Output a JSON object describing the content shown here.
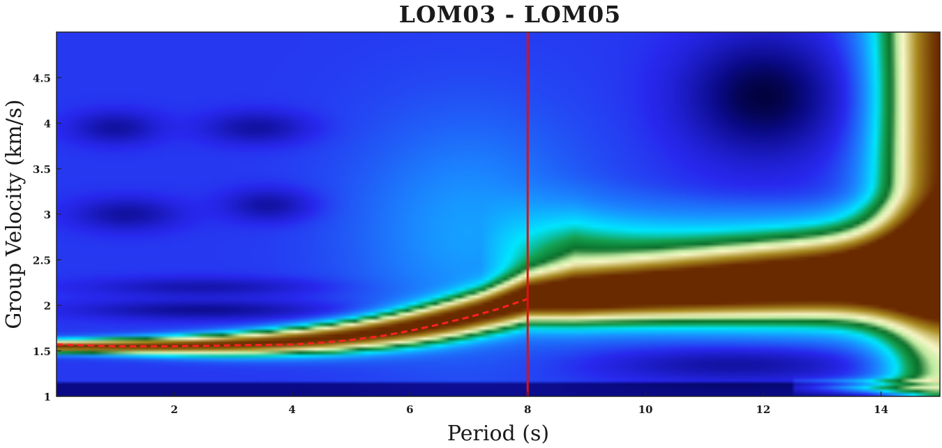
{
  "chart_data": {
    "type": "heatmap",
    "title": "LOM03 - LOM05",
    "xlabel": "Period (s)",
    "ylabel": "Group Velocity (km/s)",
    "xlim": [
      0,
      15
    ],
    "ylim": [
      1,
      5
    ],
    "x_ticks": [
      2,
      4,
      6,
      8,
      10,
      12,
      14
    ],
    "y_ticks": [
      1,
      1.5,
      2,
      2.5,
      3,
      3.5,
      4,
      4.5
    ],
    "y_tick_labels": [
      "1",
      "1.5",
      "2",
      "2.5",
      "3",
      "3.5",
      "4",
      "4.5"
    ],
    "grid": false,
    "colormap": {
      "name": "dispersion",
      "stops": [
        "#00002e",
        "#0a0a86",
        "#2828ee",
        "#1a8cff",
        "#00e6ff",
        "#14a050",
        "#0a6e2a",
        "#bfeaa0",
        "#f8f8c8",
        "#a88a1e",
        "#6a2a00"
      ]
    },
    "dispersion_curve": {
      "color": "#ff2020",
      "style": "dashed",
      "points": [
        {
          "x": 0,
          "y": 1.57
        },
        {
          "x": 0.5,
          "y": 1.56
        },
        {
          "x": 1,
          "y": 1.55
        },
        {
          "x": 1.5,
          "y": 1.55
        },
        {
          "x": 2,
          "y": 1.55
        },
        {
          "x": 2.5,
          "y": 1.555
        },
        {
          "x": 3,
          "y": 1.56
        },
        {
          "x": 3.5,
          "y": 1.565
        },
        {
          "x": 4,
          "y": 1.57
        },
        {
          "x": 4.5,
          "y": 1.59
        },
        {
          "x": 5,
          "y": 1.62
        },
        {
          "x": 5.5,
          "y": 1.66
        },
        {
          "x": 6,
          "y": 1.72
        },
        {
          "x": 6.5,
          "y": 1.79
        },
        {
          "x": 7,
          "y": 1.87
        },
        {
          "x": 7.5,
          "y": 1.96
        },
        {
          "x": 8,
          "y": 2.07
        }
      ]
    },
    "selected_period": {
      "x": 8,
      "color": "#e01010"
    }
  }
}
